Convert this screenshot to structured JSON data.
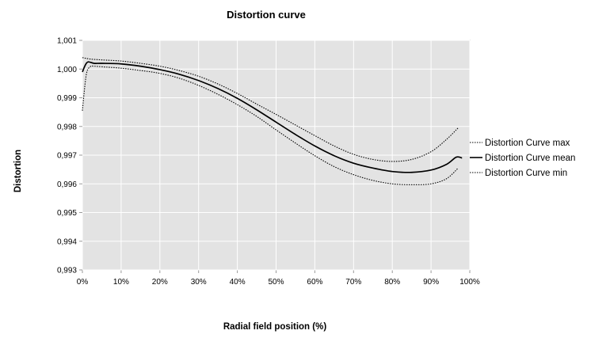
{
  "chart_data": {
    "type": "line",
    "title": "Distortion curve",
    "xlabel": "Radial field position (%)",
    "ylabel": "Distortion",
    "xlim": [
      0,
      100
    ],
    "ylim": [
      0.993,
      1.001
    ],
    "x_ticks": [
      "0%",
      "10%",
      "20%",
      "30%",
      "40%",
      "50%",
      "60%",
      "70%",
      "80%",
      "90%",
      "100%"
    ],
    "y_ticks": [
      "0,993",
      "0,994",
      "0,995",
      "0,996",
      "0,997",
      "0,998",
      "0,999",
      "1,000",
      "1,001"
    ],
    "grid": true,
    "legend_position": "right",
    "plot_background": "#e3e3e3",
    "series": [
      {
        "name": "Distortion Curve max",
        "style": "dotted",
        "color": "#000000",
        "points": [
          [
            0,
            1.0004
          ],
          [
            2,
            1.00035
          ],
          [
            5,
            1.00032
          ],
          [
            10,
            1.00028
          ],
          [
            15,
            1.0002
          ],
          [
            20,
            1.0001
          ],
          [
            25,
            0.99995
          ],
          [
            30,
            0.99975
          ],
          [
            35,
            0.99948
          ],
          [
            40,
            0.99915
          ],
          [
            45,
            0.99878
          ],
          [
            50,
            0.99842
          ],
          [
            55,
            0.99805
          ],
          [
            60,
            0.99768
          ],
          [
            65,
            0.99732
          ],
          [
            70,
            0.99703
          ],
          [
            75,
            0.99685
          ],
          [
            80,
            0.99678
          ],
          [
            85,
            0.99685
          ],
          [
            90,
            0.99712
          ],
          [
            94,
            0.99755
          ],
          [
            97,
            0.99795
          ]
        ]
      },
      {
        "name": "Distortion Curve mean",
        "style": "solid",
        "color": "#000000",
        "points": [
          [
            0,
            0.9999
          ],
          [
            0.8,
            1.00015
          ],
          [
            1.5,
            1.00025
          ],
          [
            3,
            1.0002
          ],
          [
            5,
            1.0002
          ],
          [
            10,
            1.00018
          ],
          [
            15,
            1.0001
          ],
          [
            20,
            0.99998
          ],
          [
            25,
            0.99982
          ],
          [
            30,
            0.9996
          ],
          [
            35,
            0.99932
          ],
          [
            40,
            0.99898
          ],
          [
            45,
            0.99858
          ],
          [
            50,
            0.99815
          ],
          [
            55,
            0.99772
          ],
          [
            60,
            0.99732
          ],
          [
            65,
            0.99698
          ],
          [
            70,
            0.99672
          ],
          [
            75,
            0.99655
          ],
          [
            80,
            0.99643
          ],
          [
            85,
            0.9964
          ],
          [
            90,
            0.99648
          ],
          [
            94,
            0.99668
          ],
          [
            96.5,
            0.99693
          ],
          [
            98,
            0.9969
          ]
        ]
      },
      {
        "name": "Distortion Curve min",
        "style": "dotted",
        "color": "#000000",
        "points": [
          [
            0,
            0.99855
          ],
          [
            1,
            0.9998
          ],
          [
            2,
            1.00008
          ],
          [
            3,
            1.0001
          ],
          [
            5,
            1.00008
          ],
          [
            10,
            1.00003
          ],
          [
            15,
            0.99995
          ],
          [
            20,
            0.99985
          ],
          [
            25,
            0.99968
          ],
          [
            30,
            0.99943
          ],
          [
            35,
            0.99912
          ],
          [
            40,
            0.99876
          ],
          [
            45,
            0.99835
          ],
          [
            50,
            0.99788
          ],
          [
            55,
            0.99742
          ],
          [
            60,
            0.99698
          ],
          [
            65,
            0.9966
          ],
          [
            70,
            0.99632
          ],
          [
            75,
            0.99612
          ],
          [
            80,
            0.996
          ],
          [
            85,
            0.99597
          ],
          [
            90,
            0.996
          ],
          [
            94,
            0.99618
          ],
          [
            97,
            0.99655
          ]
        ]
      }
    ]
  }
}
